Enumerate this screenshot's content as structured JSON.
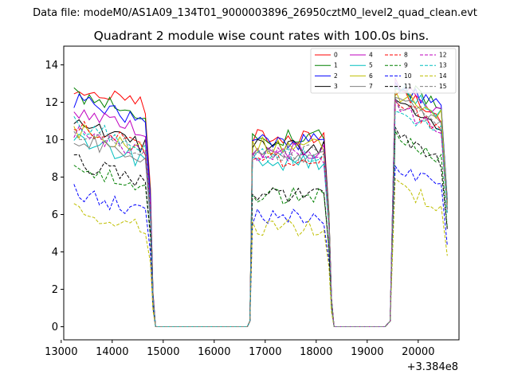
{
  "chart_data": {
    "type": "line",
    "suptitle": "Data file: modeM0/AS1A09_134T01_9000003896_26950cztM0_level2_quad_clean.evt",
    "title": "Quadrant 2 module wise count rates with 100.0s bins.",
    "xlabel": "",
    "ylabel": "",
    "x_offset_label": "+3.384e8",
    "xlim": [
      13050,
      20800
    ],
    "ylim": [
      -0.7,
      15.0
    ],
    "x_ticks": [
      13000,
      14000,
      15000,
      16000,
      17000,
      18000,
      19000,
      20000
    ],
    "x_tick_labels": [
      "13000",
      "14000",
      "15000",
      "16000",
      "17000",
      "18000",
      "19000",
      "20000"
    ],
    "y_ticks": [
      0,
      2,
      4,
      6,
      8,
      10,
      12,
      14
    ],
    "y_tick_labels": [
      "0",
      "2",
      "4",
      "6",
      "8",
      "10",
      "12",
      "14"
    ],
    "gaps": [
      {
        "off_start": 14750,
        "off_end": 16650
      },
      {
        "off_start": 18350,
        "off_end": 19350
      }
    ],
    "segments": [
      {
        "start": 13250,
        "n": 15
      },
      {
        "start": 16750,
        "n": 15
      },
      {
        "start": 19550,
        "n": 10
      }
    ],
    "legend_location": "upper right",
    "series": [
      {
        "name": "0",
        "color": "#ff0000",
        "dash": "solid",
        "levels": [
          12.3,
          10.1,
          12.0
        ]
      },
      {
        "name": "1",
        "color": "#008000",
        "dash": "solid",
        "levels": [
          11.8,
          10.1,
          12.3
        ]
      },
      {
        "name": "2",
        "color": "#0000ff",
        "dash": "solid",
        "levels": [
          11.5,
          9.9,
          12.4
        ]
      },
      {
        "name": "3",
        "color": "#000000",
        "dash": "solid",
        "levels": [
          10.2,
          9.6,
          11.5
        ]
      },
      {
        "name": "4",
        "color": "#bf00bf",
        "dash": "solid",
        "levels": [
          11.0,
          9.4,
          12.1
        ]
      },
      {
        "name": "5",
        "color": "#00bfbf",
        "dash": "solid",
        "levels": [
          9.4,
          8.8,
          12.0
        ]
      },
      {
        "name": "6",
        "color": "#bfbf00",
        "dash": "solid",
        "levels": [
          10.0,
          9.7,
          11.8
        ]
      },
      {
        "name": "7",
        "color": "#808080",
        "dash": "solid",
        "levels": [
          9.5,
          9.2,
          11.4
        ]
      },
      {
        "name": "8",
        "color": "#ff0000",
        "dash": "dashed",
        "levels": [
          10.1,
          8.9,
          11.2
        ]
      },
      {
        "name": "9",
        "color": "#008000",
        "dash": "dashed",
        "levels": [
          8.0,
          7.0,
          9.6
        ]
      },
      {
        "name": "10",
        "color": "#0000ff",
        "dash": "dashed",
        "levels": [
          6.6,
          5.9,
          7.9
        ]
      },
      {
        "name": "11",
        "color": "#000000",
        "dash": "dashed",
        "levels": [
          8.3,
          7.0,
          9.5
        ]
      },
      {
        "name": "12",
        "color": "#bf00bf",
        "dash": "dashed",
        "levels": [
          9.8,
          9.2,
          11.1
        ]
      },
      {
        "name": "13",
        "color": "#00bfbf",
        "dash": "dashed",
        "levels": [
          10.2,
          9.1,
          11.0
        ]
      },
      {
        "name": "14",
        "color": "#bfbf00",
        "dash": "dashed",
        "levels": [
          5.7,
          5.3,
          6.9
        ]
      },
      {
        "name": "15",
        "color": "#808080",
        "dash": "dashed",
        "levels": [
          9.9,
          9.3,
          11.3
        ]
      }
    ]
  }
}
